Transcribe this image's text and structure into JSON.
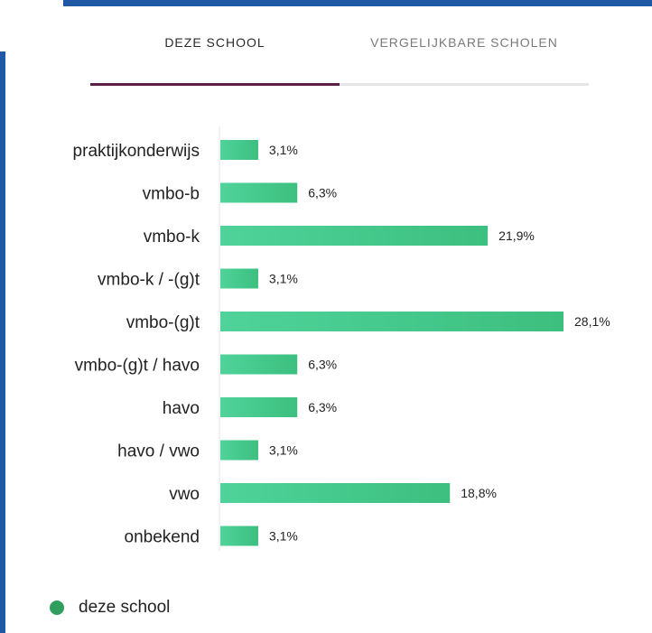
{
  "tabs": [
    {
      "label": "DEZE SCHOOL",
      "active": true
    },
    {
      "label": "VERGELIJKBARE SCHOLEN",
      "active": false
    }
  ],
  "colors": {
    "accent_bar": "#1f59a6",
    "tab_active_underline": "#5c1f46",
    "bar_fill_start": "#4fd39a",
    "bar_fill_end": "#3cbf7f",
    "legend_dot": "#2f9e5e"
  },
  "chart_data": {
    "type": "bar",
    "orientation": "horizontal",
    "categories": [
      "praktijkonderwijs",
      "vmbo-b",
      "vmbo-k",
      "vmbo-k / -(g)t",
      "vmbo-(g)t",
      "vmbo-(g)t / havo",
      "havo",
      "havo / vwo",
      "vwo",
      "onbekend"
    ],
    "series": [
      {
        "name": "deze school",
        "values": [
          3.1,
          6.3,
          21.9,
          3.1,
          28.1,
          6.3,
          6.3,
          3.1,
          18.8,
          3.1
        ]
      }
    ],
    "value_labels": [
      "3,1%",
      "6,3%",
      "21,9%",
      "3,1%",
      "28,1%",
      "6,3%",
      "6,3%",
      "3,1%",
      "18,8%",
      "3,1%"
    ],
    "xlim": [
      0,
      28.1
    ],
    "grid": false,
    "legend_position": "bottom-left"
  },
  "legend": {
    "label": "deze school"
  }
}
